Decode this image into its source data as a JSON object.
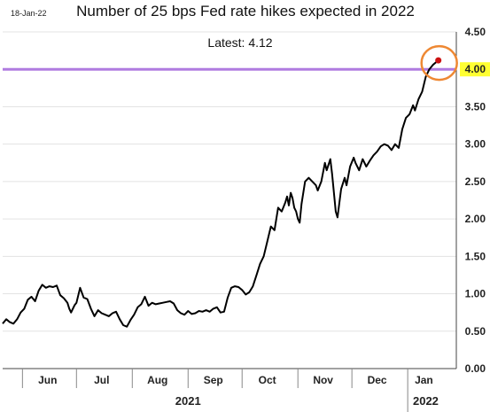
{
  "chart_data": {
    "type": "line",
    "title": "Number of 25 bps Fed rate hikes expected in 2022",
    "date_stamp": "18-Jan-22",
    "annotation": "Latest:  4.12",
    "ylim": [
      0,
      4.5
    ],
    "yticks": [
      "0.00",
      "0.50",
      "1.00",
      "1.50",
      "2.00",
      "2.50",
      "3.00",
      "3.50",
      "4.00",
      "4.50"
    ],
    "highlighted_tick": "4.00",
    "reference_line": 4.0,
    "x_range": [
      "2021-05-21",
      "2022-01-28"
    ],
    "month_labels": [
      {
        "label": "Jun",
        "date": "2021-06-15"
      },
      {
        "label": "Jul",
        "date": "2021-07-15"
      },
      {
        "label": "Aug",
        "date": "2021-08-15"
      },
      {
        "label": "Sep",
        "date": "2021-09-15"
      },
      {
        "label": "Oct",
        "date": "2021-10-15"
      },
      {
        "label": "Nov",
        "date": "2021-11-15"
      },
      {
        "label": "Dec",
        "date": "2021-12-15"
      },
      {
        "label": "Jan",
        "date": "2022-01-10"
      }
    ],
    "month_separators": [
      "2021-06-01",
      "2021-07-01",
      "2021-08-01",
      "2021-09-01",
      "2021-10-01",
      "2021-11-01",
      "2021-12-01",
      "2022-01-01"
    ],
    "year_labels": [
      {
        "label": "2021",
        "date": "2021-09-01"
      },
      {
        "label": "2022",
        "date": "2022-01-11"
      }
    ],
    "series": [
      {
        "color": "#000000",
        "points": [
          [
            "2021-05-21",
            0.6
          ],
          [
            "2021-05-23",
            0.66
          ],
          [
            "2021-05-25",
            0.62
          ],
          [
            "2021-05-27",
            0.6
          ],
          [
            "2021-05-29",
            0.66
          ],
          [
            "2021-05-31",
            0.75
          ],
          [
            "2021-06-02",
            0.8
          ],
          [
            "2021-06-04",
            0.92
          ],
          [
            "2021-06-06",
            0.96
          ],
          [
            "2021-06-08",
            0.9
          ],
          [
            "2021-06-10",
            1.04
          ],
          [
            "2021-06-12",
            1.12
          ],
          [
            "2021-06-14",
            1.08
          ],
          [
            "2021-06-16",
            1.1
          ],
          [
            "2021-06-18",
            1.09
          ],
          [
            "2021-06-20",
            1.11
          ],
          [
            "2021-06-22",
            0.98
          ],
          [
            "2021-06-24",
            0.94
          ],
          [
            "2021-06-26",
            0.88
          ],
          [
            "2021-06-27",
            0.8
          ],
          [
            "2021-06-28",
            0.75
          ],
          [
            "2021-06-30",
            0.85
          ],
          [
            "2021-07-01",
            0.88
          ],
          [
            "2021-07-03",
            1.08
          ],
          [
            "2021-07-05",
            0.95
          ],
          [
            "2021-07-07",
            0.93
          ],
          [
            "2021-07-09",
            0.8
          ],
          [
            "2021-07-11",
            0.7
          ],
          [
            "2021-07-13",
            0.78
          ],
          [
            "2021-07-15",
            0.74
          ],
          [
            "2021-07-17",
            0.72
          ],
          [
            "2021-07-19",
            0.7
          ],
          [
            "2021-07-21",
            0.74
          ],
          [
            "2021-07-23",
            0.76
          ],
          [
            "2021-07-25",
            0.66
          ],
          [
            "2021-07-27",
            0.58
          ],
          [
            "2021-07-29",
            0.56
          ],
          [
            "2021-07-31",
            0.65
          ],
          [
            "2021-08-02",
            0.72
          ],
          [
            "2021-08-04",
            0.82
          ],
          [
            "2021-08-06",
            0.86
          ],
          [
            "2021-08-08",
            0.96
          ],
          [
            "2021-08-10",
            0.84
          ],
          [
            "2021-08-12",
            0.88
          ],
          [
            "2021-08-14",
            0.86
          ],
          [
            "2021-08-16",
            0.87
          ],
          [
            "2021-08-18",
            0.88
          ],
          [
            "2021-08-20",
            0.89
          ],
          [
            "2021-08-22",
            0.9
          ],
          [
            "2021-08-24",
            0.87
          ],
          [
            "2021-08-26",
            0.78
          ],
          [
            "2021-08-28",
            0.74
          ],
          [
            "2021-08-30",
            0.72
          ],
          [
            "2021-09-01",
            0.77
          ],
          [
            "2021-09-03",
            0.73
          ],
          [
            "2021-09-05",
            0.74
          ],
          [
            "2021-09-07",
            0.77
          ],
          [
            "2021-09-09",
            0.76
          ],
          [
            "2021-09-11",
            0.78
          ],
          [
            "2021-09-13",
            0.76
          ],
          [
            "2021-09-15",
            0.8
          ],
          [
            "2021-09-17",
            0.82
          ],
          [
            "2021-09-19",
            0.75
          ],
          [
            "2021-09-21",
            0.76
          ],
          [
            "2021-09-23",
            0.95
          ],
          [
            "2021-09-25",
            1.08
          ],
          [
            "2021-09-27",
            1.1
          ],
          [
            "2021-09-29",
            1.09
          ],
          [
            "2021-10-01",
            1.05
          ],
          [
            "2021-10-03",
            0.99
          ],
          [
            "2021-10-05",
            1.02
          ],
          [
            "2021-10-07",
            1.1
          ],
          [
            "2021-10-09",
            1.25
          ],
          [
            "2021-10-11",
            1.4
          ],
          [
            "2021-10-13",
            1.5
          ],
          [
            "2021-10-15",
            1.7
          ],
          [
            "2021-10-17",
            1.9
          ],
          [
            "2021-10-19",
            1.85
          ],
          [
            "2021-10-21",
            2.15
          ],
          [
            "2021-10-23",
            2.1
          ],
          [
            "2021-10-25",
            2.22
          ],
          [
            "2021-10-26",
            2.3
          ],
          [
            "2021-10-27",
            2.18
          ],
          [
            "2021-10-28",
            2.35
          ],
          [
            "2021-10-29",
            2.28
          ],
          [
            "2021-10-30",
            2.15
          ],
          [
            "2021-10-31",
            2.1
          ],
          [
            "2021-11-01",
            2.0
          ],
          [
            "2021-11-02",
            1.95
          ],
          [
            "2021-11-03",
            2.2
          ],
          [
            "2021-11-05",
            2.5
          ],
          [
            "2021-11-07",
            2.55
          ],
          [
            "2021-11-09",
            2.5
          ],
          [
            "2021-11-11",
            2.45
          ],
          [
            "2021-11-12",
            2.38
          ],
          [
            "2021-11-14",
            2.5
          ],
          [
            "2021-11-16",
            2.75
          ],
          [
            "2021-11-17",
            2.65
          ],
          [
            "2021-11-19",
            2.8
          ],
          [
            "2021-11-20",
            2.6
          ],
          [
            "2021-11-22",
            2.1
          ],
          [
            "2021-11-23",
            2.02
          ],
          [
            "2021-11-25",
            2.4
          ],
          [
            "2021-11-27",
            2.55
          ],
          [
            "2021-11-28",
            2.45
          ],
          [
            "2021-11-30",
            2.7
          ],
          [
            "2021-12-02",
            2.82
          ],
          [
            "2021-12-03",
            2.75
          ],
          [
            "2021-12-05",
            2.65
          ],
          [
            "2021-12-07",
            2.8
          ],
          [
            "2021-12-09",
            2.7
          ],
          [
            "2021-12-11",
            2.78
          ],
          [
            "2021-12-13",
            2.85
          ],
          [
            "2021-12-15",
            2.9
          ],
          [
            "2021-12-17",
            2.97
          ],
          [
            "2021-12-19",
            3.0
          ],
          [
            "2021-12-21",
            2.98
          ],
          [
            "2021-12-23",
            2.92
          ],
          [
            "2021-12-25",
            3.0
          ],
          [
            "2021-12-27",
            2.95
          ],
          [
            "2021-12-29",
            3.2
          ],
          [
            "2021-12-31",
            3.35
          ],
          [
            "2022-01-02",
            3.4
          ],
          [
            "2022-01-04",
            3.52
          ],
          [
            "2022-01-05",
            3.45
          ],
          [
            "2022-01-07",
            3.6
          ],
          [
            "2022-01-09",
            3.7
          ],
          [
            "2022-01-11",
            3.9
          ],
          [
            "2022-01-13",
            4.0
          ],
          [
            "2022-01-15",
            4.06
          ],
          [
            "2022-01-18",
            4.12
          ]
        ]
      }
    ],
    "latest_point": [
      "2022-01-18",
      4.12
    ]
  },
  "colors": {
    "line": "#000000",
    "reference_line": "#b07be0",
    "highlight_box": "#ffff33",
    "latest_marker": "#cc1111",
    "circle": "#ee8833",
    "gridline": "#e3e3e3"
  }
}
